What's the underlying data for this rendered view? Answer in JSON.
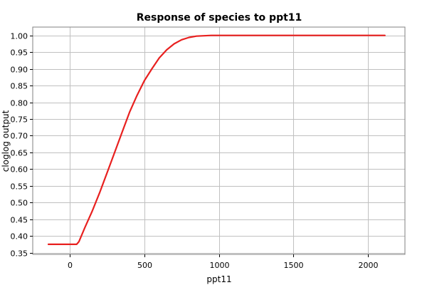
{
  "chart_data": {
    "type": "line",
    "title": "Response of species to ppt11",
    "xlabel": "ppt11",
    "ylabel": "cloglog output",
    "xlim": [
      -250,
      2250
    ],
    "ylim": [
      0.345,
      1.025
    ],
    "x_ticks": [
      0,
      500,
      1000,
      1500,
      2000
    ],
    "x_tick_labels": [
      "0",
      "500",
      "1000",
      "1500",
      "2000"
    ],
    "y_ticks": [
      0.35,
      0.4,
      0.45,
      0.5,
      0.55,
      0.6,
      0.65,
      0.7,
      0.75,
      0.8,
      0.85,
      0.9,
      0.95,
      1.0
    ],
    "y_tick_labels": [
      "0.35",
      "0.40",
      "0.45",
      "0.50",
      "0.55",
      "0.60",
      "0.65",
      "0.70",
      "0.75",
      "0.80",
      "0.85",
      "0.90",
      "0.95",
      "1.00"
    ],
    "grid": true,
    "legend": "none",
    "series": [
      {
        "color": "#e8201f",
        "x": [
          -145,
          45,
          60,
          100,
          150,
          200,
          250,
          300,
          350,
          400,
          450,
          500,
          550,
          600,
          650,
          700,
          750,
          800,
          850,
          900,
          950,
          1000,
          1500,
          2115
        ],
        "y": [
          0.375,
          0.375,
          0.383,
          0.425,
          0.475,
          0.53,
          0.59,
          0.65,
          0.71,
          0.77,
          0.82,
          0.865,
          0.9,
          0.933,
          0.957,
          0.975,
          0.987,
          0.994,
          0.998,
          0.999,
          1.0,
          1.0,
          1.0,
          1.0
        ]
      }
    ]
  }
}
